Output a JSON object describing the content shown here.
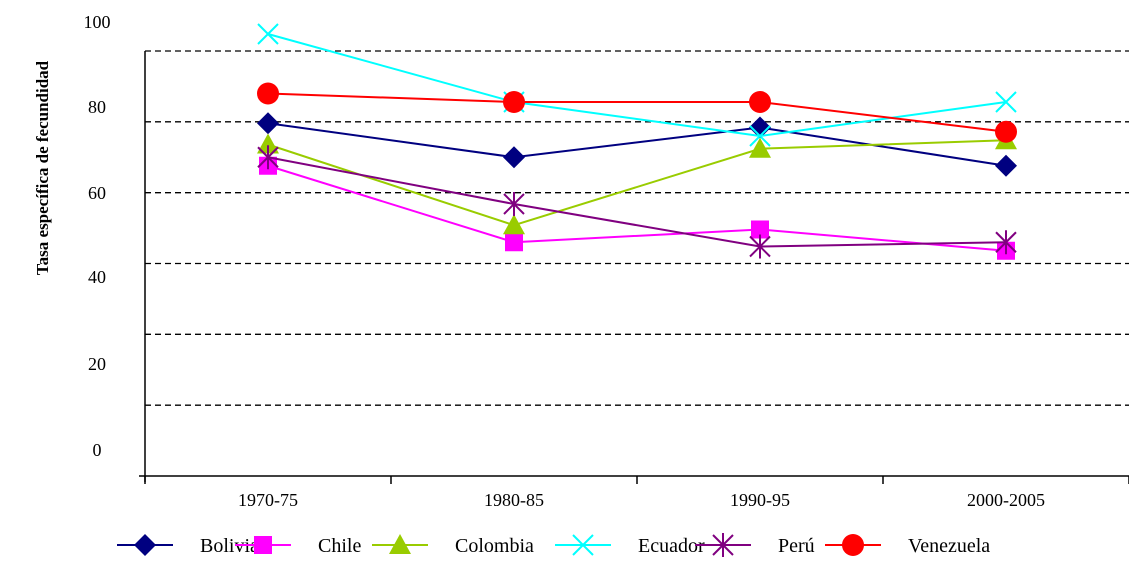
{
  "chart_data": {
    "type": "line",
    "title": "",
    "xlabel": "",
    "ylabel": "Tasa específica de fecundidad",
    "ylim": [
      0,
      100
    ],
    "yticks": [
      "0",
      "20",
      "40",
      "60",
      "80",
      "100"
    ],
    "categories": [
      "1970-75",
      "1980-85",
      "1990-95",
      "2000-2005"
    ],
    "grid": "horizontal-dashed",
    "legend_position": "bottom",
    "series": [
      {
        "name": "Bolivia",
        "values": [
          83,
          75,
          82,
          73
        ],
        "color": "#000080",
        "marker": "diamond-icon"
      },
      {
        "name": "Chile",
        "values": [
          73,
          55,
          58,
          53
        ],
        "color": "#ff00ff",
        "marker": "square-icon"
      },
      {
        "name": "Colombia",
        "values": [
          78,
          59,
          77,
          79
        ],
        "color": "#99cc00",
        "marker": "triangle-icon"
      },
      {
        "name": "Ecuador",
        "values": [
          104,
          88,
          80,
          88
        ],
        "color": "#00ffff",
        "marker": "x-icon"
      },
      {
        "name": "Perú",
        "values": [
          75,
          64,
          54,
          55
        ],
        "color": "#800080",
        "marker": "asterisk-icon"
      },
      {
        "name": "Venezuela",
        "values": [
          90,
          88,
          88,
          81
        ],
        "color": "#ff0000",
        "marker": "circle-icon"
      }
    ]
  }
}
